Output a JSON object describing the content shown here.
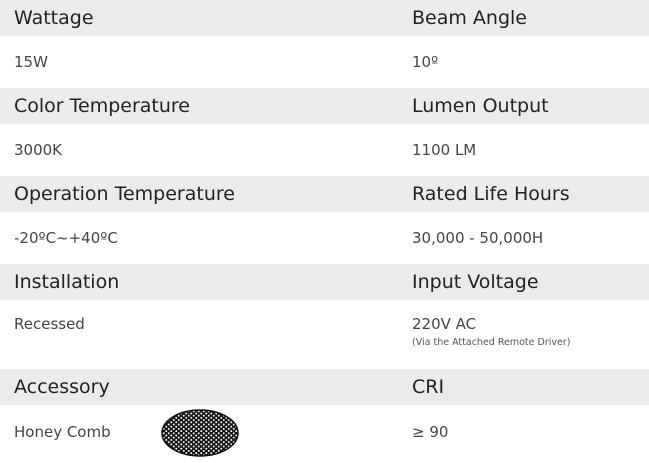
{
  "specs": [
    {
      "left": {
        "label": "Wattage",
        "value": "15W"
      },
      "right": {
        "label": "Beam Angle",
        "value": "10º"
      }
    },
    {
      "left": {
        "label": "Color Temperature",
        "value": "3000K"
      },
      "right": {
        "label": "Lumen Output",
        "value": "1100 LM"
      }
    },
    {
      "left": {
        "label": "Operation Temperature",
        "value": "-20ºC~+40ºC"
      },
      "right": {
        "label": "Rated Life Hours",
        "value": "30,000 - 50,000H"
      }
    },
    {
      "left": {
        "label": "Installation",
        "value": "Recessed"
      },
      "right": {
        "label": "Input Voltage",
        "value": "220V AC",
        "note": "(Via the Attached Remote Driver)"
      }
    },
    {
      "left": {
        "label": "Accessory",
        "value": "Honey Comb"
      },
      "right": {
        "label": "CRI",
        "value": "≥ 90"
      }
    }
  ]
}
